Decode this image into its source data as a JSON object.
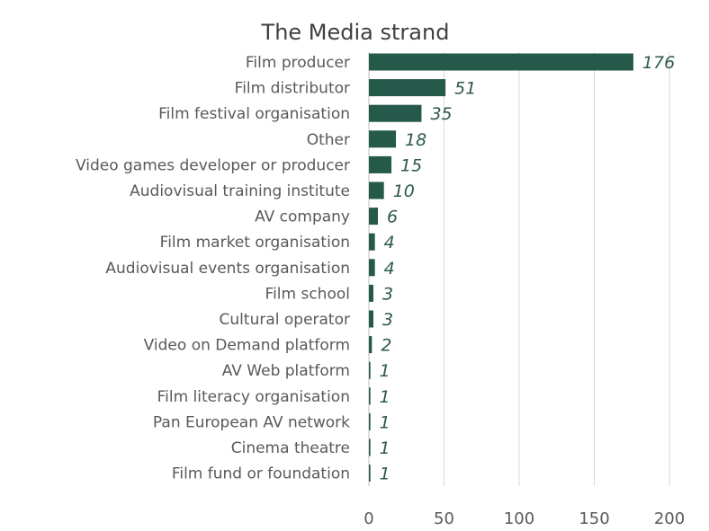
{
  "chart_data": {
    "type": "bar",
    "orientation": "horizontal",
    "title": "The Media strand",
    "categories": [
      "Film producer",
      "Film distributor",
      "Film festival organisation",
      "Other",
      "Video games developer or producer",
      "Audiovisual training institute",
      "AV company",
      "Film market organisation",
      "Audiovisual events organisation",
      "Film school",
      "Cultural operator",
      "Video on Demand platform",
      "AV Web platform",
      "Film literacy organisation",
      "Pan European AV network",
      "Cinema theatre",
      "Film fund or foundation"
    ],
    "values": [
      176,
      51,
      35,
      18,
      15,
      10,
      6,
      4,
      4,
      3,
      3,
      2,
      1,
      1,
      1,
      1,
      1
    ],
    "value_labels": [
      "176",
      "51",
      "35",
      "18",
      "15",
      "10",
      "6",
      "4",
      "4",
      "3",
      "3",
      "2",
      "1",
      "1",
      "1",
      "1",
      "1"
    ],
    "xlim": [
      0,
      200
    ],
    "x_ticks": [
      0,
      50,
      100,
      150,
      200
    ],
    "x_tick_labels": [
      "0",
      "50",
      "100",
      "150",
      "200"
    ],
    "grid": "vertical",
    "legend": "none",
    "colors": {
      "bar": "#25594a",
      "value_label": "#2e5a49",
      "grid": "#d9d9d9",
      "text": "#595959",
      "title": "#404040"
    }
  }
}
